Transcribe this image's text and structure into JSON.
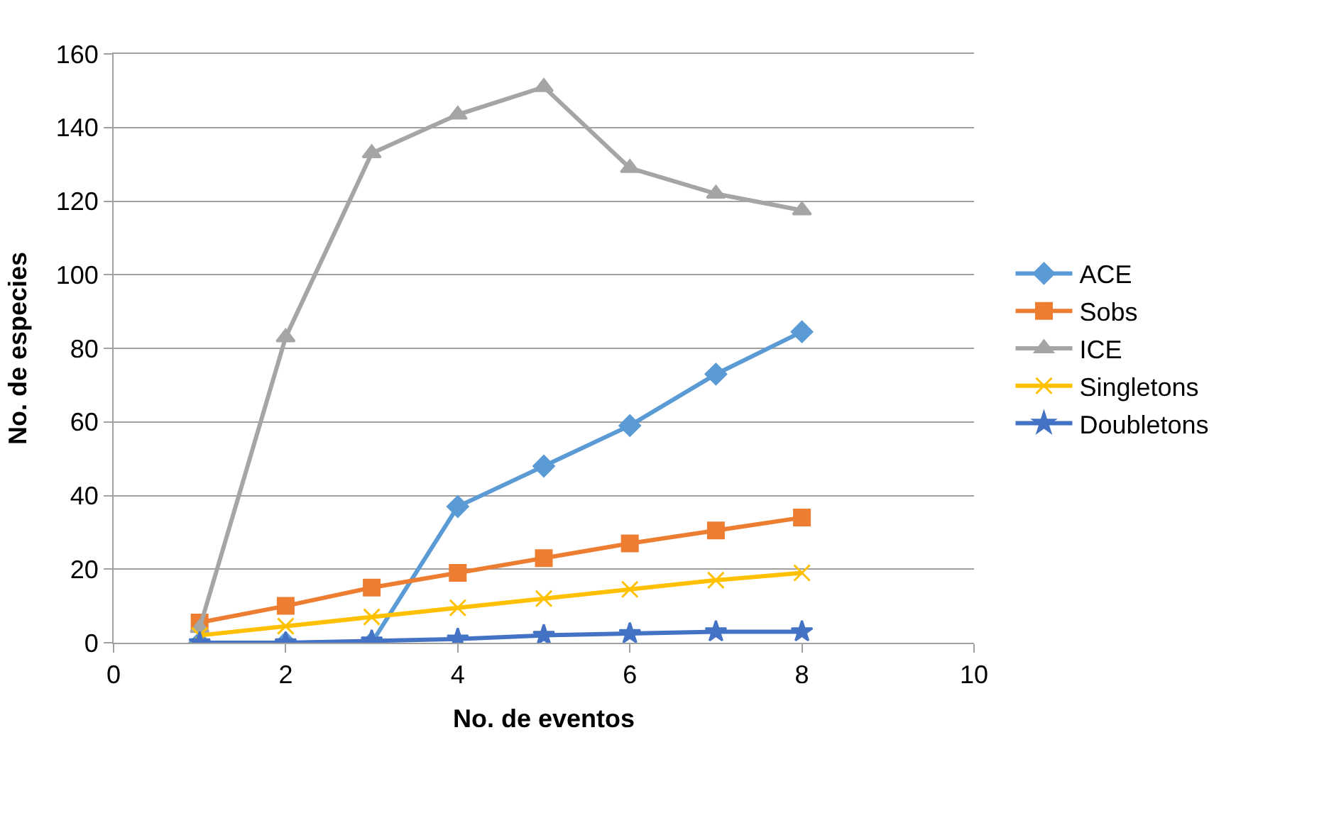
{
  "chart_data": {
    "type": "line",
    "xlabel": "No. de eventos",
    "ylabel": "No. de especies",
    "x": [
      1,
      2,
      3,
      4,
      5,
      6,
      7,
      8
    ],
    "series": [
      {
        "name": "ACE",
        "color": "#5b9bd5",
        "marker": "diamond",
        "values": [
          0,
          0,
          0,
          37,
          48,
          59,
          73,
          84.5
        ]
      },
      {
        "name": "Sobs",
        "color": "#ed7d31",
        "marker": "square",
        "values": [
          5.5,
          10,
          15,
          19,
          23,
          27,
          30.5,
          34
        ]
      },
      {
        "name": "ICE",
        "color": "#a5a5a5",
        "marker": "triangle",
        "values": [
          4,
          83,
          133,
          143.5,
          151,
          129,
          122,
          117.5
        ]
      },
      {
        "name": "Singletons",
        "color": "#ffc000",
        "marker": "cross",
        "values": [
          2,
          4.5,
          7,
          9.5,
          12,
          14.5,
          17,
          19
        ]
      },
      {
        "name": "Doubletons",
        "color": "#4472c4",
        "marker": "star",
        "values": [
          0,
          0,
          0.5,
          1,
          2,
          2.5,
          3,
          3
        ]
      }
    ],
    "xlim": [
      0,
      10
    ],
    "xticks": [
      0,
      2,
      4,
      6,
      8,
      10
    ],
    "ylim": [
      0,
      160
    ],
    "yticks": [
      0,
      20,
      40,
      60,
      80,
      100,
      120,
      140,
      160
    ],
    "grid": "y",
    "legend": "right",
    "line_style": "solid"
  }
}
